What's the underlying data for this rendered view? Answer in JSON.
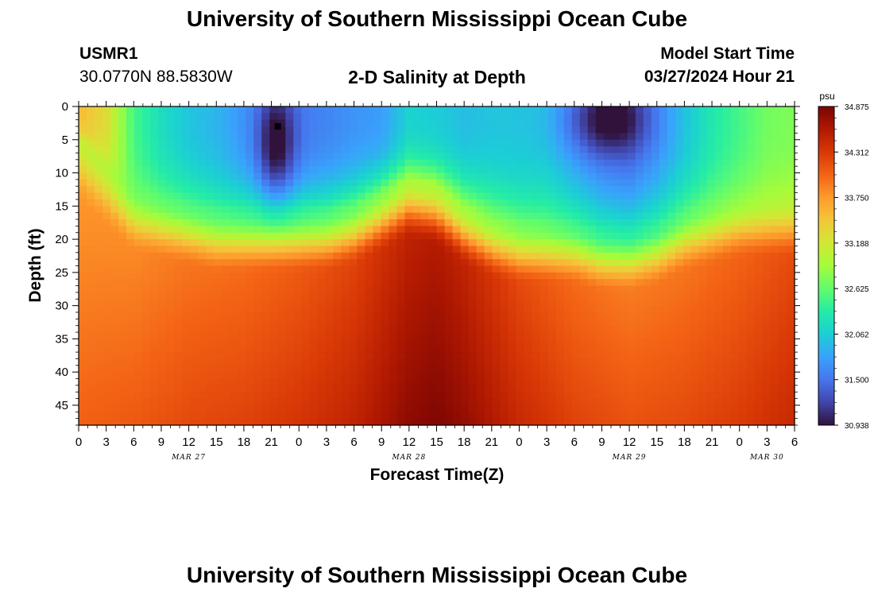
{
  "title": "University of Southern Mississippi Ocean Cube",
  "footer_title": "University of Southern Mississippi Ocean Cube",
  "station": {
    "name": "USMR1",
    "coords": "30.0770N  88.5830W"
  },
  "subtitle": "2-D Salinity at Depth",
  "model_start": {
    "label": "Model Start Time",
    "value": "03/27/2024 Hour 21"
  },
  "chart_data": {
    "type": "heatmap",
    "title": "2-D Salinity at Depth",
    "xlabel": "Forecast Time(Z)",
    "ylabel": "Depth (ft)",
    "x_range_hours": [
      0,
      78
    ],
    "y_range_ft": [
      0,
      48
    ],
    "x_ticks": [
      "0",
      "3",
      "6",
      "9",
      "12",
      "15",
      "18",
      "21",
      "0",
      "3",
      "6",
      "9",
      "12",
      "15",
      "18",
      "21",
      "0",
      "3",
      "6",
      "9",
      "12",
      "15",
      "18",
      "21",
      "0",
      "3",
      "6"
    ],
    "date_labels": [
      {
        "label": "MAR 27",
        "hour": 12
      },
      {
        "label": "MAR 28",
        "hour": 36
      },
      {
        "label": "MAR 29",
        "hour": 60
      },
      {
        "label": "MAR 30",
        "hour": 75
      }
    ],
    "y_ticks": [
      0,
      5,
      10,
      15,
      20,
      25,
      30,
      35,
      40,
      45
    ],
    "colorbar": {
      "unit": "psu",
      "min": 30.938,
      "max": 34.875,
      "tick_labels": [
        "34.875",
        "34.312",
        "33.750",
        "33.188",
        "32.625",
        "32.062",
        "31.500",
        "30.938"
      ],
      "colors": [
        "#30123b",
        "#4145ab",
        "#4675ed",
        "#39a2fc",
        "#1bcfd4",
        "#24eca6",
        "#61fc6c",
        "#a4fc3b",
        "#d1e834",
        "#f3c63a",
        "#fe9b2d",
        "#f36315",
        "#d93806",
        "#b11901",
        "#7a0403"
      ]
    },
    "marker": {
      "hour": 21.7,
      "depth_ft": 3
    },
    "salinity_model": {
      "surface_columns": [
        {
          "hour": 0,
          "psu": 33.55,
          "halocline_ft": 5
        },
        {
          "hour": 3,
          "psu": 33.3,
          "halocline_ft": 9
        },
        {
          "hour": 6,
          "psu": 32.5,
          "halocline_ft": 13
        },
        {
          "hour": 9,
          "psu": 32.2,
          "halocline_ft": 14
        },
        {
          "hour": 12,
          "psu": 32.0,
          "halocline_ft": 15
        },
        {
          "hour": 15,
          "psu": 31.9,
          "halocline_ft": 16
        },
        {
          "hour": 18,
          "psu": 31.7,
          "halocline_ft": 16
        },
        {
          "hour": 21,
          "psu": 31.6,
          "halocline_ft": 16
        },
        {
          "hour": 24,
          "psu": 31.55,
          "halocline_ft": 16
        },
        {
          "hour": 27,
          "psu": 31.6,
          "halocline_ft": 16
        },
        {
          "hour": 30,
          "psu": 31.7,
          "halocline_ft": 15
        },
        {
          "hour": 33,
          "psu": 31.75,
          "halocline_ft": 13
        },
        {
          "hour": 36,
          "psu": 32.1,
          "halocline_ft": 11
        },
        {
          "hour": 39,
          "psu": 32.05,
          "halocline_ft": 12
        },
        {
          "hour": 42,
          "psu": 31.95,
          "halocline_ft": 15
        },
        {
          "hour": 45,
          "psu": 32.0,
          "halocline_ft": 17
        },
        {
          "hour": 48,
          "psu": 32.0,
          "halocline_ft": 18
        },
        {
          "hour": 51,
          "psu": 32.0,
          "halocline_ft": 18
        },
        {
          "hour": 54,
          "psu": 31.8,
          "halocline_ft": 18
        },
        {
          "hour": 57,
          "psu": 31.6,
          "halocline_ft": 19
        },
        {
          "hour": 60,
          "psu": 31.5,
          "halocline_ft": 19
        },
        {
          "hour": 63,
          "psu": 31.7,
          "halocline_ft": 18
        },
        {
          "hour": 66,
          "psu": 32.0,
          "halocline_ft": 16
        },
        {
          "hour": 69,
          "psu": 32.3,
          "halocline_ft": 15
        },
        {
          "hour": 72,
          "psu": 32.5,
          "halocline_ft": 14
        },
        {
          "hour": 75,
          "psu": 32.7,
          "halocline_ft": 14
        },
        {
          "hour": 78,
          "psu": 32.75,
          "halocline_ft": 14
        }
      ],
      "fresh_pockets": [
        {
          "hour": 21.5,
          "depth_ft": 6,
          "sigma_h": 1.4,
          "sigma_ft": 6,
          "delta_psu": -0.8
        },
        {
          "hour": 57.5,
          "depth_ft": 2,
          "sigma_h": 3.2,
          "sigma_ft": 4,
          "delta_psu": -0.75
        }
      ],
      "deep_columns": [
        {
          "hour": 0,
          "psu": 34.05
        },
        {
          "hour": 6,
          "psu": 34.1
        },
        {
          "hour": 12,
          "psu": 34.2
        },
        {
          "hour": 18,
          "psu": 34.25
        },
        {
          "hour": 24,
          "psu": 34.35
        },
        {
          "hour": 30,
          "psu": 34.5
        },
        {
          "hour": 36,
          "psu": 34.78
        },
        {
          "hour": 39,
          "psu": 34.85
        },
        {
          "hour": 42,
          "psu": 34.75
        },
        {
          "hour": 48,
          "psu": 34.45
        },
        {
          "hour": 54,
          "psu": 34.25
        },
        {
          "hour": 60,
          "psu": 34.15
        },
        {
          "hour": 66,
          "psu": 34.2
        },
        {
          "hour": 72,
          "psu": 34.3
        },
        {
          "hour": 78,
          "psu": 34.45
        }
      ]
    }
  }
}
